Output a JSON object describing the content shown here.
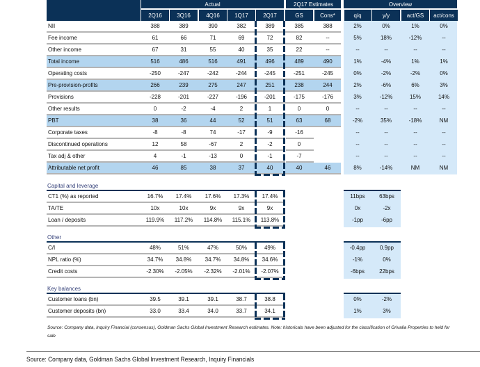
{
  "header": {
    "actual": "Actual",
    "estimates": "2Q17 Estimates",
    "overview": "Overview",
    "columns": [
      "2Q16",
      "3Q16",
      "4Q16",
      "1Q17",
      "2Q17",
      "GS",
      "Cons*",
      "q/q",
      "y/y",
      "act/GS",
      "act/cons"
    ]
  },
  "main_rows": [
    {
      "label": "NII",
      "hl": false,
      "values": [
        "388",
        "389",
        "390",
        "382",
        "389",
        "385",
        "388",
        "2%",
        "0%",
        "1%",
        "0%"
      ]
    },
    {
      "label": "Fee income",
      "hl": false,
      "values": [
        "61",
        "66",
        "71",
        "69",
        "72",
        "82",
        "--",
        "5%",
        "18%",
        "-12%",
        "--"
      ]
    },
    {
      "label": "Other income",
      "hl": false,
      "values": [
        "67",
        "31",
        "55",
        "40",
        "35",
        "22",
        "--",
        "--",
        "--",
        "--",
        "--"
      ]
    },
    {
      "label": "Total income",
      "hl": true,
      "values": [
        "516",
        "486",
        "516",
        "491",
        "496",
        "489",
        "490",
        "1%",
        "-4%",
        "1%",
        "1%"
      ]
    },
    {
      "label": "Operating costs",
      "hl": false,
      "values": [
        "-250",
        "-247",
        "-242",
        "-244",
        "-245",
        "-251",
        "-245",
        "0%",
        "-2%",
        "-2%",
        "0%"
      ]
    },
    {
      "label": "Pre-provision-profits",
      "hl": true,
      "values": [
        "266",
        "239",
        "275",
        "247",
        "251",
        "238",
        "244",
        "2%",
        "-6%",
        "6%",
        "3%"
      ]
    },
    {
      "label": "Provisions",
      "hl": false,
      "values": [
        "-228",
        "-201",
        "-227",
        "-196",
        "-201",
        "-175",
        "-176",
        "3%",
        "-12%",
        "15%",
        "14%"
      ]
    },
    {
      "label": "Other results",
      "hl": false,
      "values": [
        "0",
        "-2",
        "-4",
        "2",
        "1",
        "0",
        "0",
        "--",
        "--",
        "--",
        "--"
      ]
    },
    {
      "label": "PBT",
      "hl": true,
      "values": [
        "38",
        "36",
        "44",
        "52",
        "51",
        "63",
        "68",
        "-2%",
        "35%",
        "-18%",
        "NM"
      ]
    },
    {
      "label": "Corporate taxes",
      "hl": false,
      "short": true,
      "values": [
        "-8",
        "-8",
        "74",
        "-17",
        "-9",
        "-16",
        "",
        "--",
        "--",
        "--",
        "--"
      ]
    },
    {
      "label": "Discontinued operations",
      "hl": false,
      "short": true,
      "values": [
        "12",
        "58",
        "-67",
        "2",
        "-2",
        "0",
        "",
        "--",
        "--",
        "--",
        "--"
      ]
    },
    {
      "label": "Tax adj & other",
      "hl": false,
      "short": true,
      "values": [
        "4",
        "-1",
        "-13",
        "0",
        "-1",
        "-7",
        "",
        "--",
        "--",
        "--",
        "--"
      ]
    },
    {
      "label": "Attributable net profit",
      "hl": true,
      "values": [
        "46",
        "85",
        "38",
        "37",
        "40",
        "40",
        "46",
        "8%",
        "-14%",
        "NM",
        "NM"
      ]
    }
  ],
  "sections": [
    {
      "title": "Capital and leverage",
      "rows": [
        {
          "label": "CT1 (%) as reported",
          "values": [
            "16.7%",
            "17.4%",
            "17.6%",
            "17.3%",
            "17.4%"
          ],
          "overview": [
            "11bps",
            "63bps"
          ]
        },
        {
          "label": "TA/TE",
          "values": [
            "10x",
            "10x",
            "9x",
            "9x",
            "9x"
          ],
          "overview": [
            "0x",
            "-2x"
          ]
        },
        {
          "label": "Loan / deposits",
          "values": [
            "119.9%",
            "117.2%",
            "114.8%",
            "115.1%",
            "113.8%"
          ],
          "overview": [
            "-1pp",
            "-6pp"
          ]
        }
      ]
    },
    {
      "title": "Other",
      "rows": [
        {
          "label": "C/I",
          "values": [
            "48%",
            "51%",
            "47%",
            "50%",
            "49%"
          ],
          "overview": [
            "-0.4pp",
            "0.9pp"
          ]
        },
        {
          "label": "NPL ratio (%)",
          "values": [
            "34.7%",
            "34.8%",
            "34.7%",
            "34.8%",
            "34.6%"
          ],
          "overview": [
            "-1%",
            "0%"
          ]
        },
        {
          "label": "Credit costs",
          "values": [
            "-2.30%",
            "-2.05%",
            "-2.32%",
            "-2.01%",
            "-2.07%"
          ],
          "overview": [
            "-6bps",
            "22bps"
          ]
        }
      ]
    },
    {
      "title": "Key balances",
      "rows": [
        {
          "label": "Customer loans (bn)",
          "values": [
            "39.5",
            "39.1",
            "39.1",
            "38.7",
            "38.8"
          ],
          "overview": [
            "0%",
            "-2%"
          ]
        },
        {
          "label": "Customer deposits (bn)",
          "values": [
            "33.0",
            "33.4",
            "34.0",
            "33.7",
            "34.1"
          ],
          "overview": [
            "1%",
            "3%"
          ]
        }
      ]
    }
  ],
  "footnote": "Source: Company data, Inquiry Financial (consensus), Goldman Sachs Global Investment Research estimates. Note: historicals have been adjusted for the classification of Grivalia Properties to held for sale",
  "source": "Source: Company data, Goldman Sachs Global Investment Research, Inquiry Financials",
  "colors": {
    "navy": "#0b3157",
    "highlight": "#b3d5ef",
    "overview_bg": "#d5e9f9"
  }
}
